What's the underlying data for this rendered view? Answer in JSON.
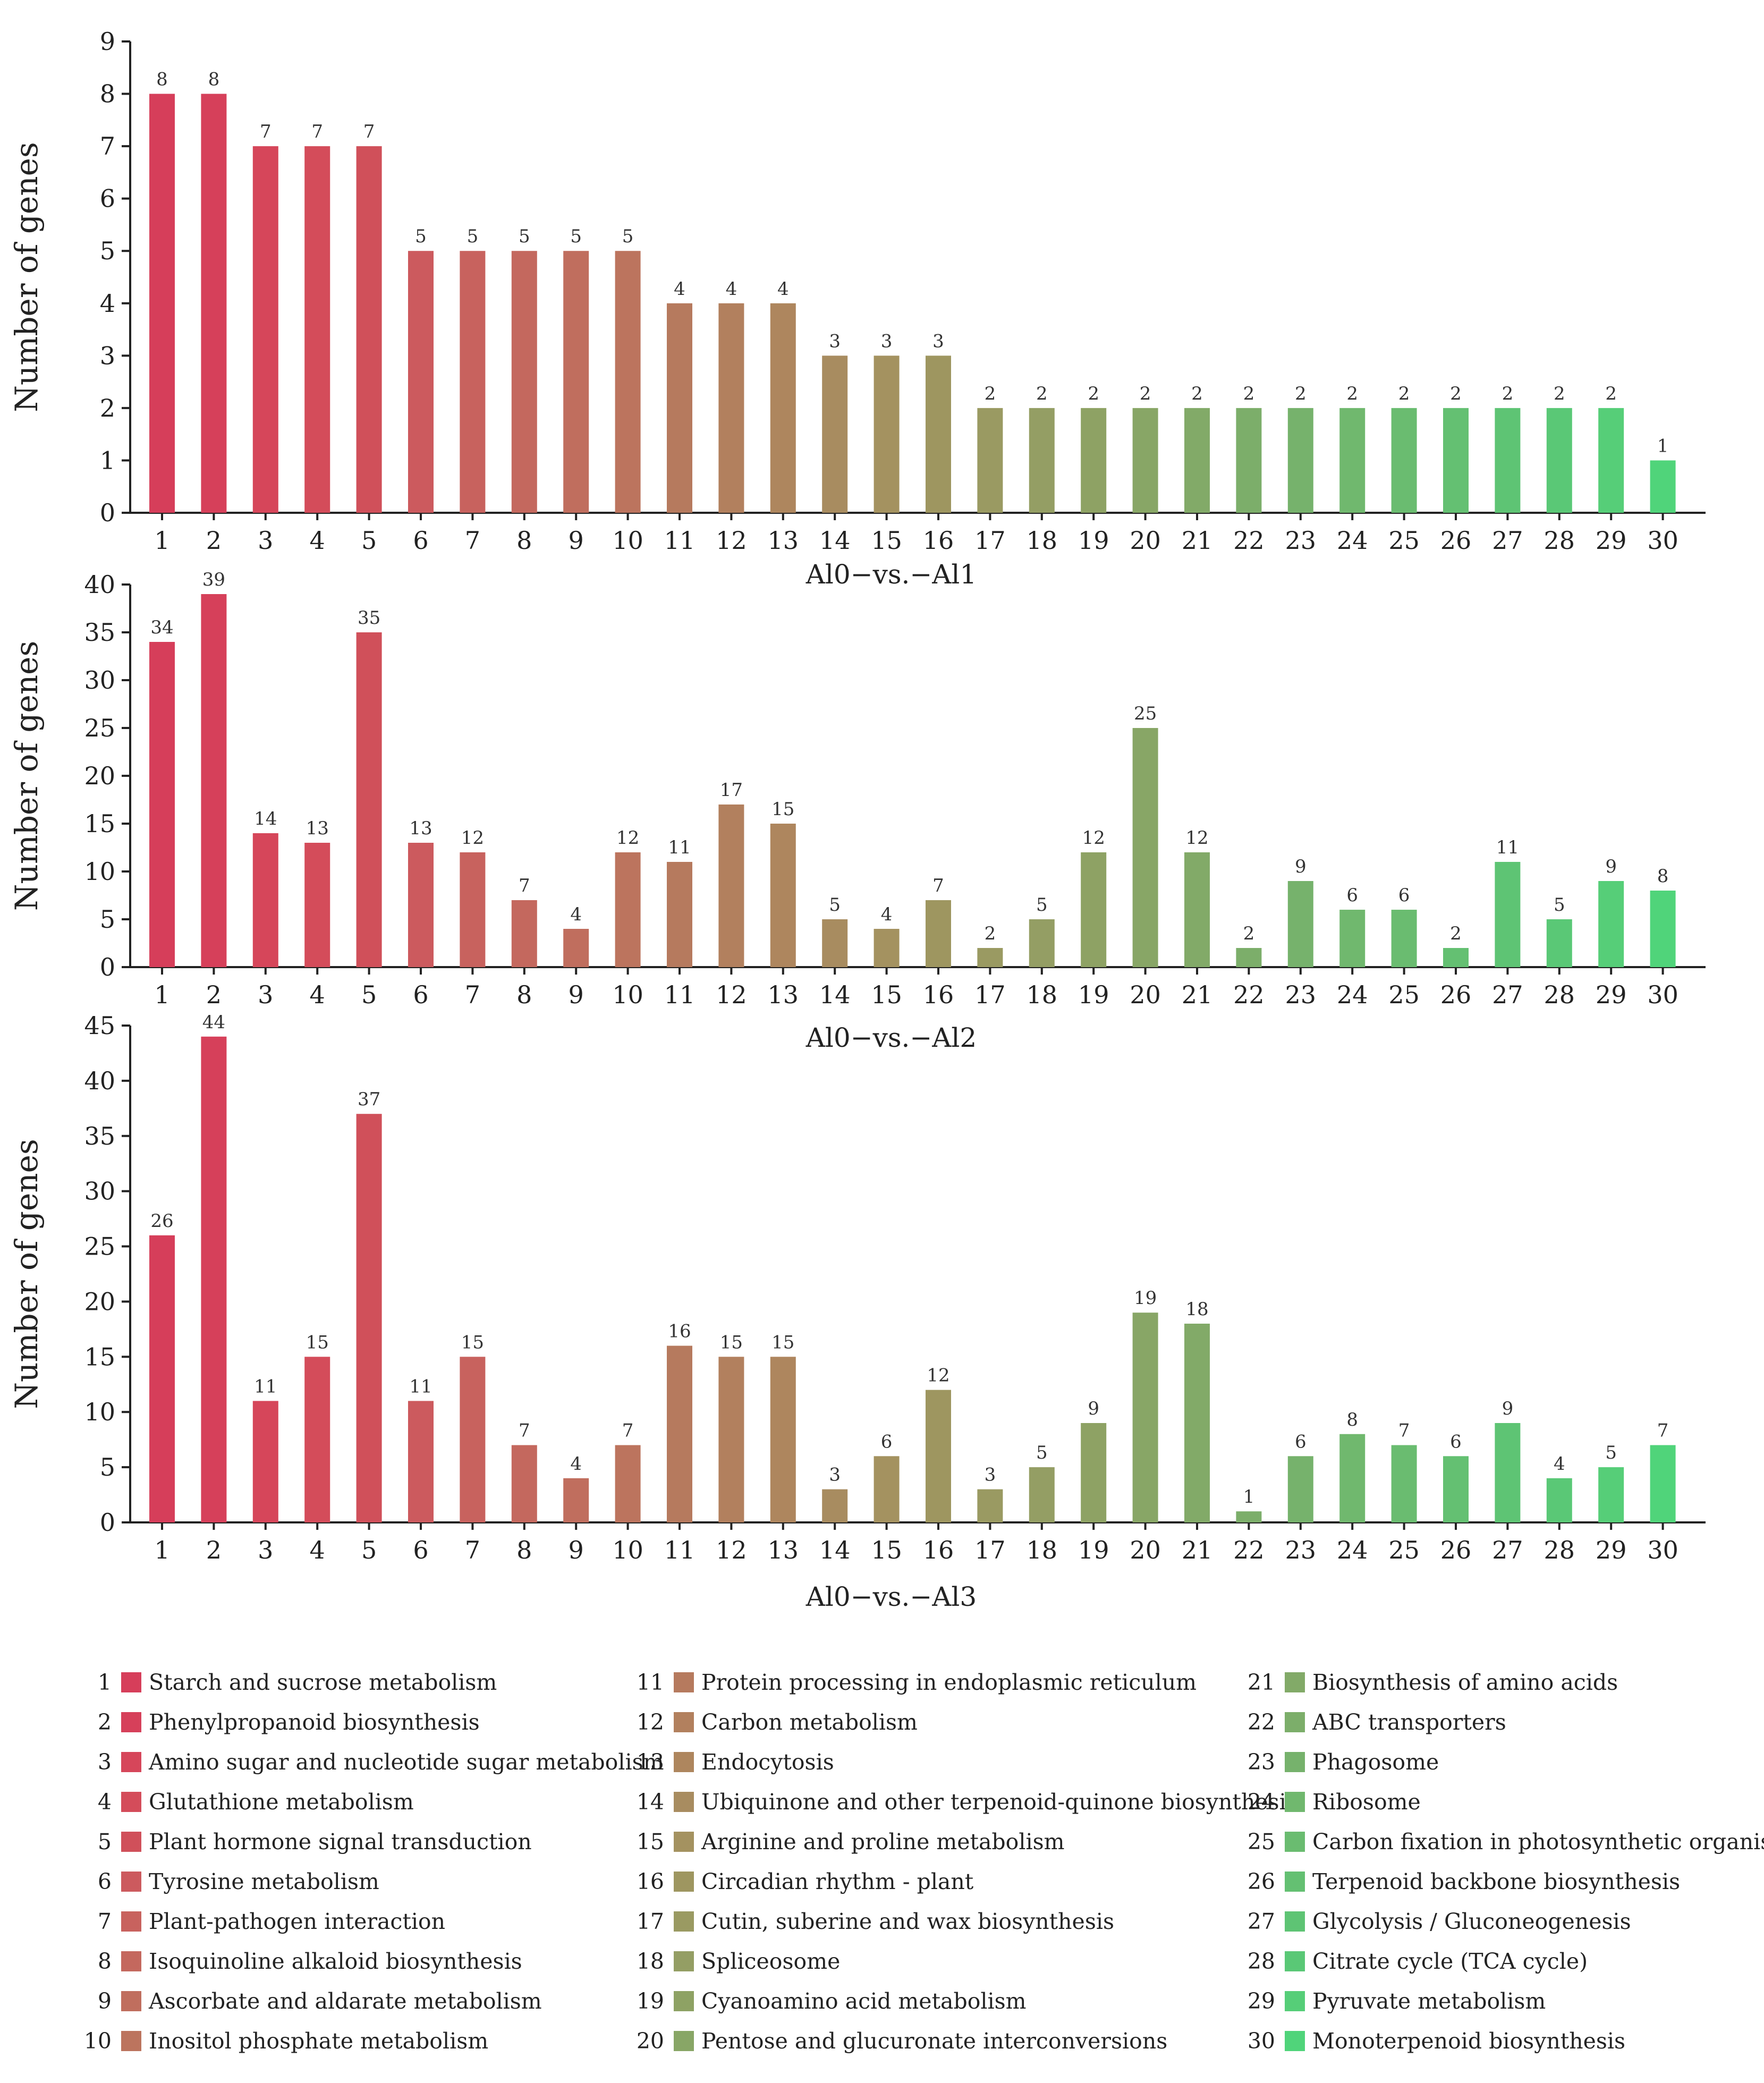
{
  "chart_data": [
    {
      "type": "bar",
      "title": "Al0−vs.−Al1",
      "ylabel": "Number of genes",
      "xlabel": "",
      "ylim": [
        0,
        9
      ],
      "yticks": [
        "0",
        "1",
        "2",
        "3",
        "4",
        "5",
        "6",
        "7",
        "8",
        "9"
      ],
      "categories": [
        "1",
        "2",
        "3",
        "4",
        "5",
        "6",
        "7",
        "8",
        "9",
        "10",
        "11",
        "12",
        "13",
        "14",
        "15",
        "16",
        "17",
        "18",
        "19",
        "20",
        "21",
        "22",
        "23",
        "24",
        "25",
        "26",
        "27",
        "28",
        "29",
        "30"
      ],
      "values": [
        8,
        8,
        7,
        7,
        7,
        5,
        5,
        5,
        5,
        5,
        4,
        4,
        4,
        3,
        3,
        3,
        2,
        2,
        2,
        2,
        2,
        2,
        2,
        2,
        2,
        2,
        2,
        2,
        2,
        1
      ]
    },
    {
      "type": "bar",
      "title": "Al0−vs.−Al2",
      "ylabel": "Number of genes",
      "xlabel": "",
      "ylim": [
        0,
        40
      ],
      "yticks": [
        "0",
        "5",
        "10",
        "15",
        "20",
        "25",
        "30",
        "35",
        "40"
      ],
      "categories": [
        "1",
        "2",
        "3",
        "4",
        "5",
        "6",
        "7",
        "8",
        "9",
        "10",
        "11",
        "12",
        "13",
        "14",
        "15",
        "16",
        "17",
        "18",
        "19",
        "20",
        "21",
        "22",
        "23",
        "24",
        "25",
        "26",
        "27",
        "28",
        "29",
        "30"
      ],
      "values": [
        34,
        39,
        14,
        13,
        35,
        13,
        12,
        7,
        4,
        12,
        11,
        17,
        15,
        5,
        4,
        7,
        2,
        5,
        12,
        25,
        12,
        2,
        9,
        6,
        6,
        2,
        11,
        5,
        9,
        8
      ]
    },
    {
      "type": "bar",
      "title": "Al0−vs.−Al3",
      "ylabel": "Number of genes",
      "xlabel": "",
      "ylim": [
        0,
        45
      ],
      "yticks": [
        "0",
        "5",
        "10",
        "15",
        "20",
        "25",
        "30",
        "35",
        "40",
        "45"
      ],
      "categories": [
        "1",
        "2",
        "3",
        "4",
        "5",
        "6",
        "7",
        "8",
        "9",
        "10",
        "11",
        "12",
        "13",
        "14",
        "15",
        "16",
        "17",
        "18",
        "19",
        "20",
        "21",
        "22",
        "23",
        "24",
        "25",
        "26",
        "27",
        "28",
        "29",
        "30"
      ],
      "values": [
        26,
        44,
        11,
        15,
        37,
        11,
        15,
        7,
        4,
        7,
        16,
        15,
        15,
        3,
        6,
        12,
        3,
        5,
        9,
        19,
        18,
        1,
        6,
        8,
        7,
        6,
        9,
        4,
        5,
        7
      ]
    }
  ],
  "bar_colors": [
    "#d63e5a",
    "#d6405a",
    "#d6465a",
    "#d44c5a",
    "#d0505a",
    "#cc5a5e",
    "#c8625e",
    "#c4685e",
    "#c06e5e",
    "#bc745e",
    "#b67a5e",
    "#b2805e",
    "#ae865e",
    "#a88c60",
    "#a49260",
    "#9e9660",
    "#9a9a62",
    "#949e64",
    "#8ea264",
    "#88a666",
    "#82aa68",
    "#7cae6a",
    "#76b26c",
    "#70b86e",
    "#6abc70",
    "#64c072",
    "#5ec474",
    "#5ac876",
    "#56ce78",
    "#50d47a"
  ],
  "legend": [
    {
      "num": "1",
      "label": "Starch and sucrose metabolism"
    },
    {
      "num": "2",
      "label": "Phenylpropanoid biosynthesis"
    },
    {
      "num": "3",
      "label": "Amino sugar and nucleotide sugar metabolism"
    },
    {
      "num": "4",
      "label": "Glutathione metabolism"
    },
    {
      "num": "5",
      "label": "Plant hormone signal transduction"
    },
    {
      "num": "6",
      "label": "Tyrosine metabolism"
    },
    {
      "num": "7",
      "label": "Plant-pathogen interaction"
    },
    {
      "num": "8",
      "label": "Isoquinoline alkaloid biosynthesis"
    },
    {
      "num": "9",
      "label": "Ascorbate and aldarate metabolism"
    },
    {
      "num": "10",
      "label": "Inositol phosphate metabolism"
    },
    {
      "num": "11",
      "label": "Protein processing in endoplasmic reticulum"
    },
    {
      "num": "12",
      "label": "Carbon metabolism"
    },
    {
      "num": "13",
      "label": "Endocytosis"
    },
    {
      "num": "14",
      "label": "Ubiquinone and other terpenoid-quinone biosynthesis"
    },
    {
      "num": "15",
      "label": "Arginine and proline metabolism"
    },
    {
      "num": "16",
      "label": "Circadian rhythm - plant"
    },
    {
      "num": "17",
      "label": "Cutin, suberine and wax biosynthesis"
    },
    {
      "num": "18",
      "label": "Spliceosome"
    },
    {
      "num": "19",
      "label": "Cyanoamino acid metabolism"
    },
    {
      "num": "20",
      "label": "Pentose and glucuronate interconversions"
    },
    {
      "num": "21",
      "label": "Biosynthesis of amino acids"
    },
    {
      "num": "22",
      "label": "ABC transporters"
    },
    {
      "num": "23",
      "label": "Phagosome"
    },
    {
      "num": "24",
      "label": "Ribosome"
    },
    {
      "num": "25",
      "label": "Carbon fixation in photosynthetic organisms"
    },
    {
      "num": "26",
      "label": "Terpenoid backbone biosynthesis"
    },
    {
      "num": "27",
      "label": "Glycolysis / Gluconeogenesis"
    },
    {
      "num": "28",
      "label": "Citrate cycle (TCA cycle)"
    },
    {
      "num": "29",
      "label": "Pyruvate metabolism"
    },
    {
      "num": "30",
      "label": "Monoterpenoid biosynthesis"
    }
  ]
}
